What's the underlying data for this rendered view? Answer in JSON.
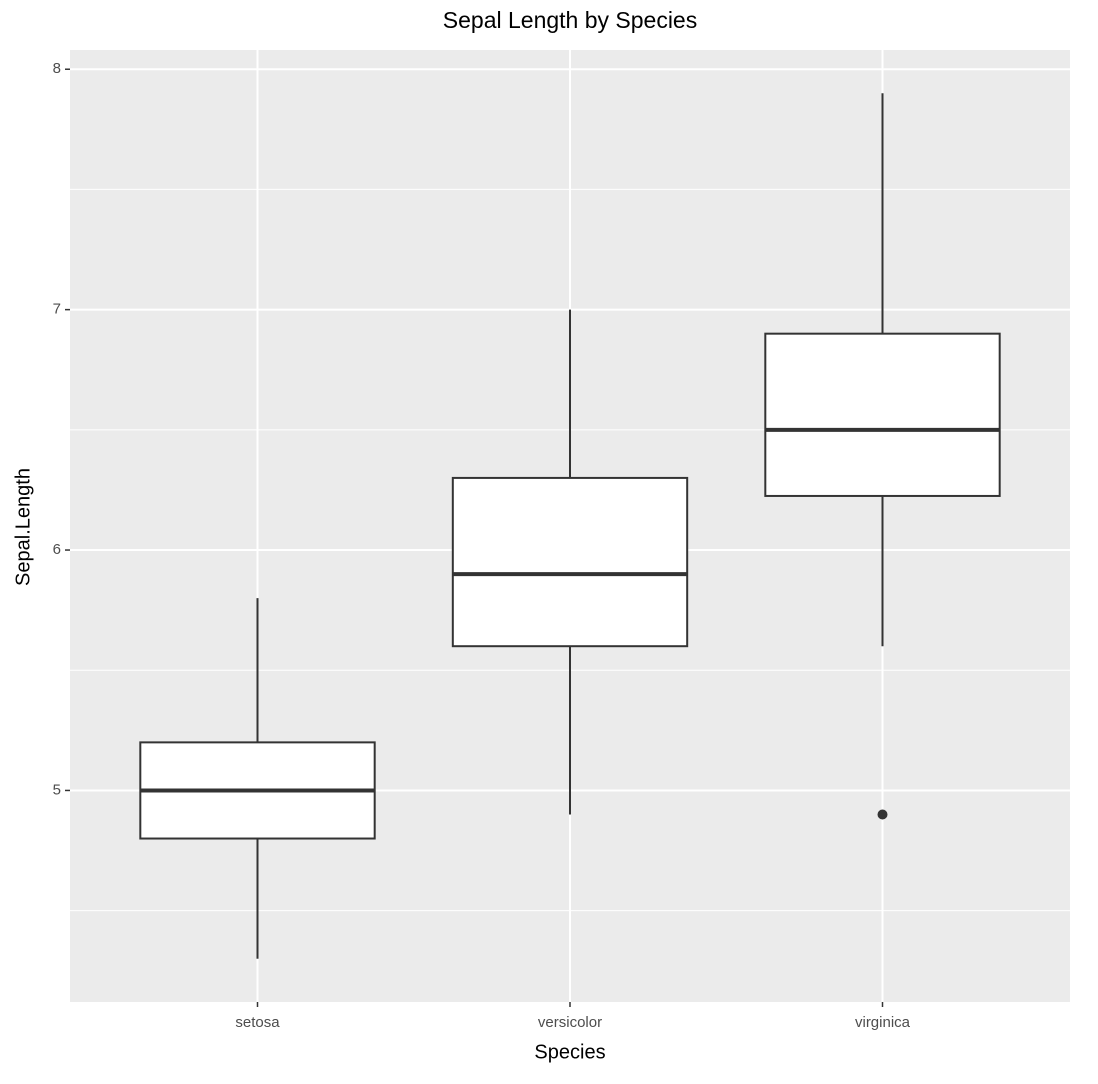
{
  "chart_data": {
    "type": "box",
    "title": "Sepal Length by Species",
    "x_label": "Species",
    "y_label": "Sepal.Length",
    "categories": [
      "setosa",
      "versicolor",
      "virginica"
    ],
    "boxes": [
      {
        "min": 4.3,
        "q1": 4.8,
        "median": 5.0,
        "q3": 5.2,
        "max": 5.8,
        "outliers": []
      },
      {
        "min": 4.9,
        "q1": 5.6,
        "median": 5.9,
        "q3": 6.3,
        "max": 7.0,
        "outliers": []
      },
      {
        "min": 5.6,
        "q1": 6.225,
        "median": 6.5,
        "q3": 6.9,
        "max": 7.9,
        "outliers": [
          4.9
        ]
      }
    ],
    "ylim": [
      4.12,
      8.08
    ],
    "yticks": [
      5,
      6,
      7,
      8
    ],
    "yminor": [
      4.5,
      5.5,
      6.5,
      7.5
    ],
    "grid": true,
    "fill": "#ffffff",
    "stroke": "#333333",
    "panel": "#ebebeb"
  }
}
